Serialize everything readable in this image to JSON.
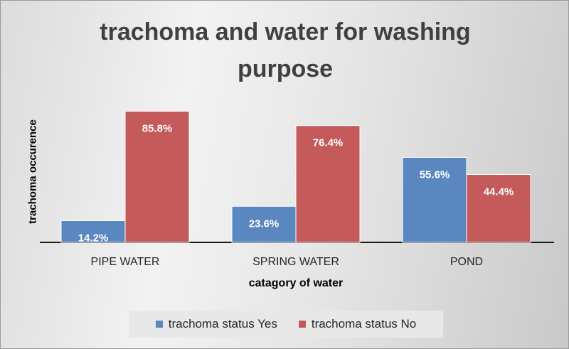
{
  "chart_data": {
    "type": "bar",
    "title": "trachoma and water for washing purpose",
    "xlabel": "catagory of water",
    "ylabel": "trachoma occurence",
    "categories": [
      "PIPE WATER",
      "SPRING WATER",
      "POND"
    ],
    "series": [
      {
        "name": "trachoma status Yes",
        "color": "#5b87c0",
        "values": [
          14.2,
          23.6,
          55.6
        ],
        "labels": [
          "14.2%",
          "23.6%",
          "55.6%"
        ]
      },
      {
        "name": "trachoma status No",
        "color": "#c45a59",
        "values": [
          85.8,
          76.4,
          44.4
        ],
        "labels": [
          "85.8%",
          "76.4%",
          "44.4%"
        ]
      }
    ],
    "ylim": [
      0,
      100
    ],
    "grid": false,
    "legend_position": "bottom"
  }
}
